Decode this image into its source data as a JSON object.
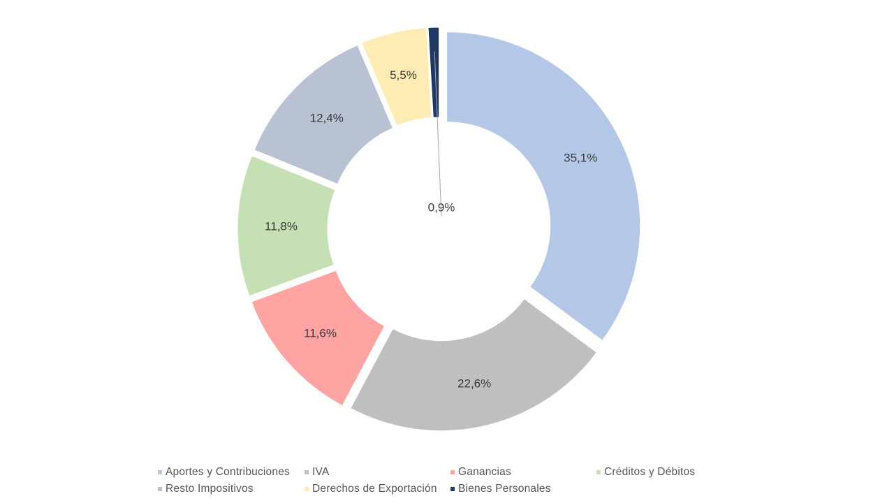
{
  "chart_data": {
    "type": "pie",
    "variant": "donut",
    "title": "",
    "categories": [
      "Aportes y Contribuciones",
      "IVA",
      "Ganancias",
      "Créditos y Débitos",
      "Resto Impositivos",
      "Derechos de Exportación",
      "Bienes Personales"
    ],
    "values": [
      35.1,
      22.6,
      11.6,
      11.8,
      12.4,
      5.5,
      0.9
    ],
    "labels": [
      "35,1%",
      "22,6%",
      "11,6%",
      "11,8%",
      "12,4%",
      "5,5%",
      "0,9%"
    ],
    "colors": [
      "#b4c7e7",
      "#bfbfbf",
      "#ffa3a3",
      "#c5e0b4",
      "#b8c2d2",
      "#ffebb3",
      "#203864"
    ],
    "legend_position": "bottom",
    "slices_exploded": true
  }
}
